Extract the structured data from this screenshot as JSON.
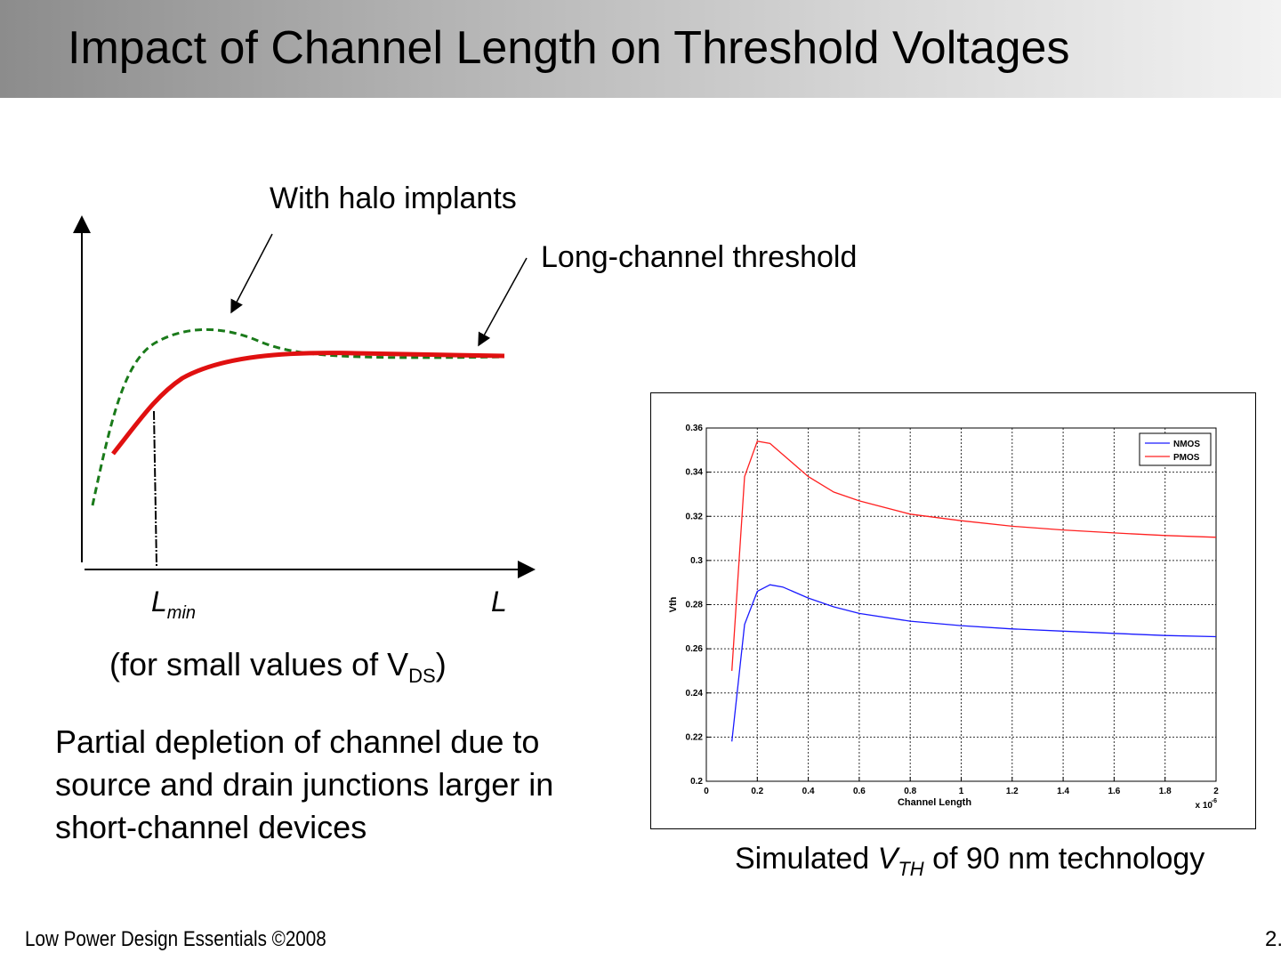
{
  "slide": {
    "title": "Impact of Channel Length on Threshold Voltages",
    "footer_left": "Low Power Design Essentials ©2008",
    "footer_right": "2."
  },
  "sketch": {
    "halo_label": "With halo implants",
    "long_channel_label": "Long-channel threshold",
    "lmin_label": "L",
    "lmin_sub": "min",
    "l_label": "L",
    "condition_prefix": "(for small values of V",
    "condition_sub": "DS",
    "condition_suffix": ")",
    "colors": {
      "halo": "#1a7a1a",
      "long_channel": "#e01010"
    }
  },
  "body_text": "Partial depletion of channel due to source and drain junctions larger in short-channel devices",
  "caption": {
    "prefix": "Simulated ",
    "symbol": "V",
    "symbol_sub": "TH",
    "suffix": " of 90 nm technology"
  },
  "chart_data": {
    "type": "line",
    "title": "",
    "xlabel": "Channel Length",
    "ylabel": "Vth",
    "x_multiplier_label": "x 10",
    "x_multiplier_exp": "-6",
    "xlim": [
      0,
      2
    ],
    "ylim": [
      0.2,
      0.36
    ],
    "x_ticks": [
      0,
      0.2,
      0.4,
      0.6,
      0.8,
      1,
      1.2,
      1.4,
      1.6,
      1.8,
      2
    ],
    "y_ticks": [
      0.2,
      0.22,
      0.24,
      0.26,
      0.28,
      0.3,
      0.32,
      0.34,
      0.36
    ],
    "grid": true,
    "legend_position": "top-right",
    "series": [
      {
        "name": "NMOS",
        "color": "#1a1aff",
        "x": [
          0.1,
          0.15,
          0.2,
          0.25,
          0.3,
          0.4,
          0.5,
          0.6,
          0.8,
          1.0,
          1.2,
          1.4,
          1.6,
          1.8,
          2.0
        ],
        "y": [
          0.218,
          0.271,
          0.286,
          0.289,
          0.288,
          0.283,
          0.279,
          0.276,
          0.2725,
          0.2705,
          0.269,
          0.268,
          0.267,
          0.266,
          0.2655
        ]
      },
      {
        "name": "PMOS",
        "color": "#ff2020",
        "x": [
          0.1,
          0.15,
          0.2,
          0.25,
          0.3,
          0.4,
          0.5,
          0.6,
          0.8,
          1.0,
          1.2,
          1.4,
          1.6,
          1.8,
          2.0
        ],
        "y": [
          0.25,
          0.338,
          0.354,
          0.353,
          0.348,
          0.338,
          0.331,
          0.327,
          0.321,
          0.318,
          0.3155,
          0.3138,
          0.3125,
          0.3113,
          0.3105
        ]
      }
    ]
  }
}
